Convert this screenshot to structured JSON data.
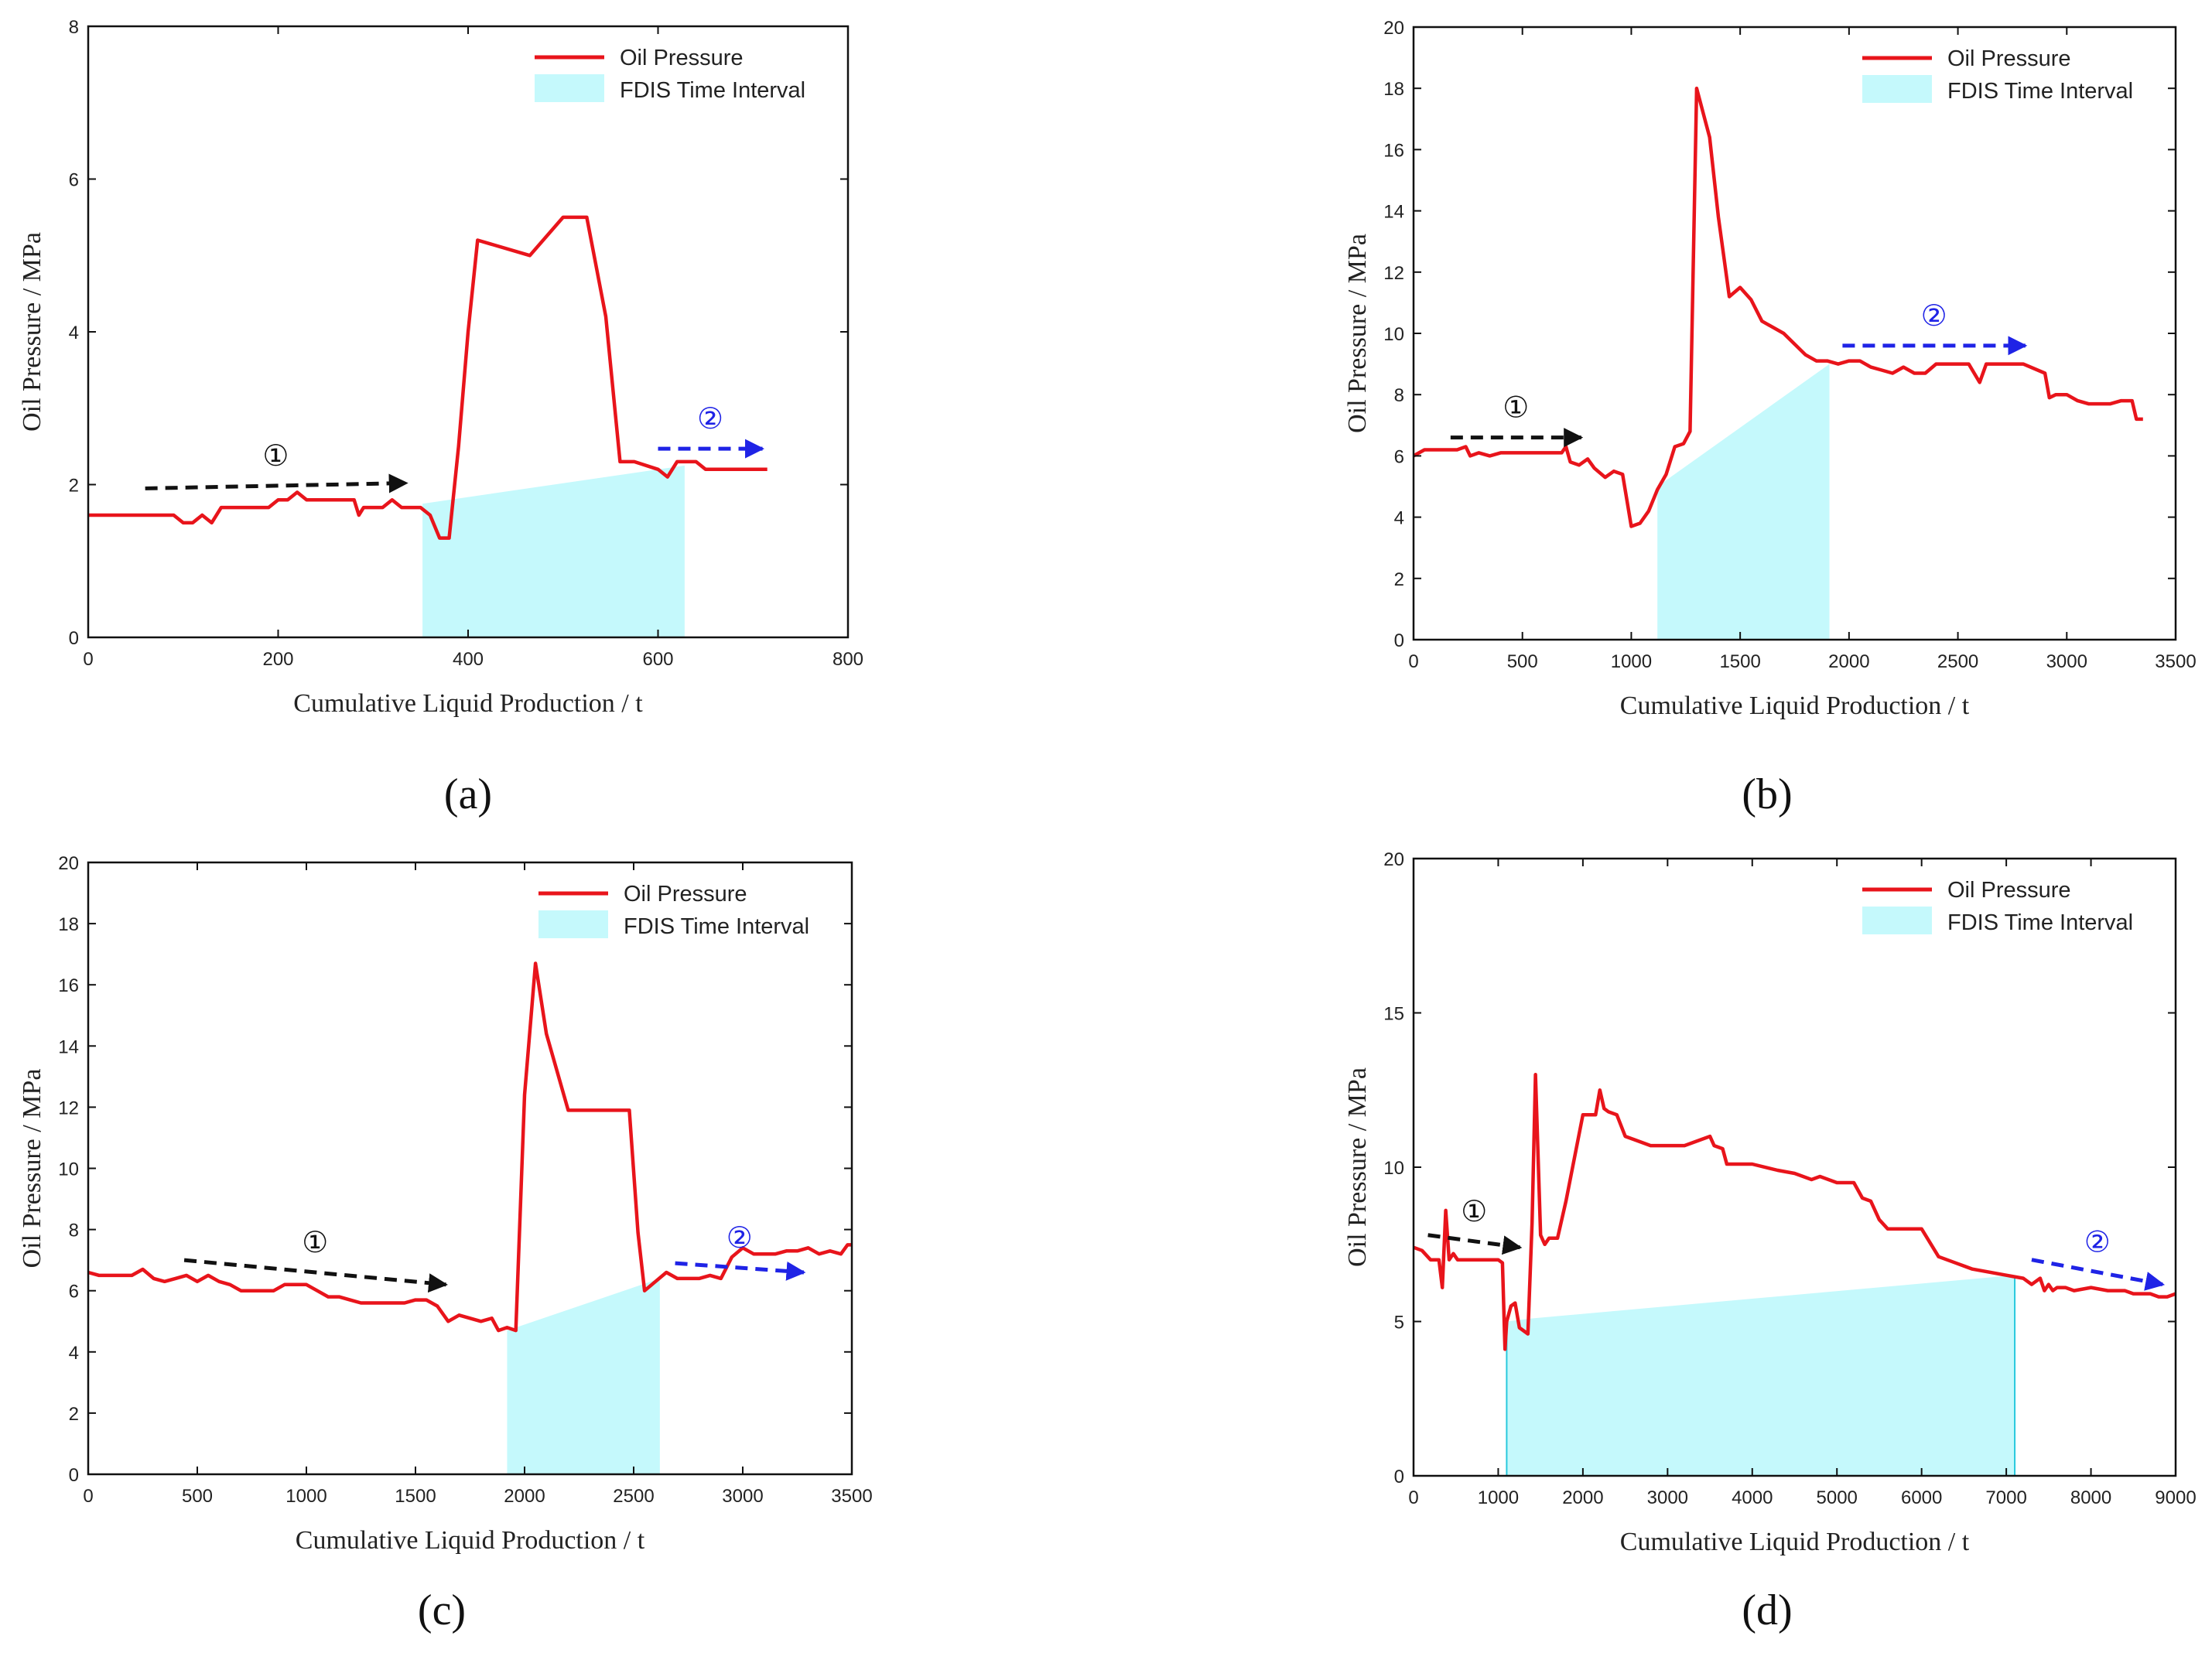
{
  "chart_data": [
    {
      "type": "line",
      "panel_label": "(a)",
      "xlabel": "Cumulative Liquid Production / t",
      "ylabel": "Oil Pressure / MPa",
      "xlim": [
        0,
        800
      ],
      "ylim": [
        0,
        8
      ],
      "xticks": [
        0,
        200,
        400,
        600,
        800
      ],
      "yticks": [
        0,
        2,
        4,
        6,
        8
      ],
      "legend": {
        "position": "top-right",
        "line_label": "Oil Pressure",
        "area_label": "FDIS Time Interval"
      },
      "series": [
        {
          "name": "Oil Pressure",
          "color": "#e8141b",
          "x": [
            0,
            90,
            100,
            110,
            120,
            130,
            140,
            150,
            190,
            200,
            210,
            220,
            230,
            280,
            285,
            290,
            300,
            310,
            320,
            330,
            340,
            350,
            360,
            370,
            380,
            390,
            400,
            410,
            465,
            500,
            525,
            545,
            560,
            575,
            600,
            610,
            620,
            630,
            640,
            650,
            660,
            680,
            700,
            715
          ],
          "y": [
            1.6,
            1.6,
            1.5,
            1.5,
            1.6,
            1.5,
            1.7,
            1.7,
            1.7,
            1.8,
            1.8,
            1.9,
            1.8,
            1.8,
            1.6,
            1.7,
            1.7,
            1.7,
            1.8,
            1.7,
            1.7,
            1.7,
            1.6,
            1.3,
            1.3,
            2.5,
            4.0,
            5.2,
            5.0,
            5.5,
            5.5,
            4.2,
            2.3,
            2.3,
            2.2,
            2.1,
            2.3,
            2.3,
            2.3,
            2.2,
            2.2,
            2.2,
            2.2,
            2.2
          ]
        }
      ],
      "interval": {
        "color": "#c5f9fc",
        "x": [
          352,
          352,
          628,
          628
        ],
        "y": [
          0,
          1.75,
          2.25,
          0
        ]
      },
      "annotations": [
        {
          "label": "①",
          "color": "#111111",
          "x1": 60,
          "y1": 1.95,
          "x2": 335,
          "y2": 2.02
        },
        {
          "label": "②",
          "color": "#1f23e6",
          "x1": 600,
          "y1": 2.47,
          "x2": 710,
          "y2": 2.47
        }
      ]
    },
    {
      "type": "line",
      "panel_label": "(b)",
      "xlabel": "Cumulative Liquid Production / t",
      "ylabel": "Oil Pressure / MPa",
      "xlim": [
        0,
        3500
      ],
      "ylim": [
        0,
        20
      ],
      "xticks": [
        0,
        500,
        1000,
        1500,
        2000,
        2500,
        3000,
        3500
      ],
      "yticks": [
        0,
        2,
        4,
        6,
        8,
        10,
        12,
        14,
        16,
        18,
        20
      ],
      "legend": {
        "position": "top-right",
        "line_label": "Oil Pressure",
        "area_label": "FDIS Time Interval"
      },
      "series": [
        {
          "name": "Oil Pressure",
          "color": "#e8141b",
          "x": [
            0,
            50,
            200,
            240,
            260,
            300,
            350,
            400,
            500,
            600,
            680,
            700,
            720,
            760,
            800,
            830,
            880,
            920,
            960,
            1000,
            1040,
            1080,
            1120,
            1160,
            1200,
            1240,
            1270,
            1300,
            1330,
            1360,
            1400,
            1450,
            1500,
            1550,
            1600,
            1700,
            1800,
            1850,
            1900,
            1950,
            2000,
            2050,
            2100,
            2150,
            2200,
            2250,
            2300,
            2350,
            2400,
            2450,
            2500,
            2550,
            2600,
            2630,
            2650,
            2700,
            2800,
            2900,
            2920,
            2950,
            3000,
            3050,
            3100,
            3200,
            3250,
            3270,
            3300,
            3320,
            3350
          ],
          "y": [
            6.0,
            6.2,
            6.2,
            6.3,
            6.0,
            6.1,
            6.0,
            6.1,
            6.1,
            6.1,
            6.1,
            6.3,
            5.8,
            5.7,
            5.9,
            5.6,
            5.3,
            5.5,
            5.4,
            3.7,
            3.8,
            4.2,
            4.9,
            5.4,
            6.3,
            6.4,
            6.8,
            18.0,
            17.2,
            16.4,
            13.8,
            11.2,
            11.5,
            11.1,
            10.4,
            10.0,
            9.3,
            9.1,
            9.1,
            9.0,
            9.1,
            9.1,
            8.9,
            8.8,
            8.7,
            8.9,
            8.7,
            8.7,
            9.0,
            9.0,
            9.0,
            9.0,
            8.4,
            9.0,
            9.0,
            9.0,
            9.0,
            8.7,
            7.9,
            8.0,
            8.0,
            7.8,
            7.7,
            7.7,
            7.8,
            7.8,
            7.8,
            7.2,
            7.2
          ]
        }
      ],
      "interval": {
        "color": "#c5f9fc",
        "x": [
          1120,
          1120,
          1910,
          1910
        ],
        "y": [
          0,
          5.0,
          9.0,
          0
        ]
      },
      "annotations": [
        {
          "label": "①",
          "color": "#111111",
          "x1": 170,
          "y1": 6.6,
          "x2": 770,
          "y2": 6.6
        },
        {
          "label": "②",
          "color": "#1f23e6",
          "x1": 1970,
          "y1": 9.6,
          "x2": 2810,
          "y2": 9.6
        }
      ]
    },
    {
      "type": "line",
      "panel_label": "(c)",
      "xlabel": "Cumulative Liquid Production / t",
      "ylabel": "Oil Pressure / MPa",
      "xlim": [
        0,
        3500
      ],
      "ylim": [
        0,
        20
      ],
      "xticks": [
        0,
        500,
        1000,
        1500,
        2000,
        2500,
        3000,
        3500
      ],
      "yticks": [
        0,
        2,
        4,
        6,
        8,
        10,
        12,
        14,
        16,
        18,
        20
      ],
      "legend": {
        "position": "top-right",
        "line_label": "Oil Pressure",
        "area_label": "FDIS Time Interval"
      },
      "series": [
        {
          "name": "Oil Pressure",
          "color": "#e8141b",
          "x": [
            0,
            50,
            100,
            200,
            250,
            300,
            350,
            400,
            450,
            500,
            550,
            600,
            650,
            700,
            750,
            800,
            850,
            900,
            950,
            1000,
            1050,
            1100,
            1150,
            1200,
            1250,
            1300,
            1350,
            1400,
            1450,
            1500,
            1550,
            1600,
            1650,
            1700,
            1750,
            1800,
            1850,
            1880,
            1920,
            1960,
            2000,
            2050,
            2100,
            2200,
            2300,
            2400,
            2480,
            2520,
            2550,
            2600,
            2650,
            2700,
            2750,
            2800,
            2850,
            2900,
            2950,
            3000,
            3050,
            3100,
            3150,
            3200,
            3250,
            3300,
            3350,
            3400,
            3450,
            3480,
            3500
          ],
          "y": [
            6.6,
            6.5,
            6.5,
            6.5,
            6.7,
            6.4,
            6.3,
            6.4,
            6.5,
            6.3,
            6.5,
            6.3,
            6.2,
            6.0,
            6.0,
            6.0,
            6.0,
            6.2,
            6.2,
            6.2,
            6.0,
            5.8,
            5.8,
            5.7,
            5.6,
            5.6,
            5.6,
            5.6,
            5.6,
            5.7,
            5.7,
            5.5,
            5.0,
            5.2,
            5.1,
            5.0,
            5.1,
            4.7,
            4.8,
            4.7,
            12.4,
            16.7,
            14.4,
            11.9,
            11.9,
            11.9,
            11.9,
            7.9,
            6.0,
            6.3,
            6.6,
            6.4,
            6.4,
            6.4,
            6.5,
            6.4,
            7.1,
            7.4,
            7.2,
            7.2,
            7.2,
            7.3,
            7.3,
            7.4,
            7.2,
            7.3,
            7.2,
            7.5,
            7.5
          ]
        }
      ],
      "interval": {
        "color": "#c5f9fc",
        "x": [
          1920,
          1920,
          2620,
          2620
        ],
        "y": [
          0,
          4.7,
          6.4,
          0
        ]
      },
      "annotations": [
        {
          "label": "①",
          "color": "#111111",
          "x1": 440,
          "y1": 7.0,
          "x2": 1640,
          "y2": 6.2
        },
        {
          "label": "②",
          "color": "#1f23e6",
          "x1": 2690,
          "y1": 6.9,
          "x2": 3280,
          "y2": 6.6
        }
      ]
    },
    {
      "type": "line",
      "panel_label": "(d)",
      "xlabel": "Cumulative Liquid Production / t",
      "ylabel": "Oil Pressure / MPa",
      "xlim": [
        0,
        9000
      ],
      "ylim": [
        0,
        20
      ],
      "xticks": [
        0,
        1000,
        2000,
        3000,
        4000,
        5000,
        6000,
        7000,
        8000,
        9000
      ],
      "yticks": [
        0,
        5,
        10,
        15,
        20
      ],
      "legend": {
        "position": "top-right",
        "line_label": "Oil Pressure",
        "area_label": "FDIS Time Interval"
      },
      "series": [
        {
          "name": "Oil Pressure",
          "color": "#e8141b",
          "x": [
            0,
            100,
            200,
            300,
            340,
            380,
            420,
            470,
            520,
            600,
            800,
            1000,
            1050,
            1080,
            1100,
            1150,
            1200,
            1250,
            1300,
            1350,
            1400,
            1440,
            1500,
            1550,
            1600,
            1700,
            1800,
            2000,
            2150,
            2200,
            2250,
            2300,
            2400,
            2500,
            2600,
            2800,
            3000,
            3200,
            3400,
            3500,
            3550,
            3650,
            3700,
            3800,
            4000,
            4300,
            4500,
            4700,
            4800,
            5000,
            5200,
            5300,
            5400,
            5500,
            5600,
            5800,
            6000,
            6200,
            6300,
            6400,
            6600,
            6800,
            7000,
            7200,
            7300,
            7400,
            7450,
            7500,
            7550,
            7600,
            7700,
            7800,
            8000,
            8200,
            8300,
            8400,
            8500,
            8600,
            8700,
            8800,
            8900,
            9000
          ],
          "y": [
            7.4,
            7.3,
            7.0,
            7.0,
            6.1,
            8.6,
            7.0,
            7.2,
            7.0,
            7.0,
            7.0,
            7.0,
            6.9,
            4.1,
            5.0,
            5.5,
            5.6,
            4.8,
            4.7,
            4.6,
            8.2,
            13.0,
            7.8,
            7.5,
            7.7,
            7.7,
            8.9,
            11.7,
            11.7,
            12.5,
            11.9,
            11.8,
            11.7,
            11.0,
            10.9,
            10.7,
            10.7,
            10.7,
            10.9,
            11.0,
            10.7,
            10.6,
            10.1,
            10.1,
            10.1,
            9.9,
            9.8,
            9.6,
            9.7,
            9.5,
            9.5,
            9.0,
            8.9,
            8.3,
            8.0,
            8.0,
            8.0,
            7.1,
            7.0,
            6.9,
            6.7,
            6.6,
            6.5,
            6.4,
            6.2,
            6.4,
            6.0,
            6.2,
            6.0,
            6.1,
            6.1,
            6.0,
            6.1,
            6.0,
            6.0,
            6.0,
            5.9,
            5.9,
            5.9,
            5.8,
            5.8,
            5.9
          ]
        }
      ],
      "interval": {
        "color": "#c5f9fc",
        "x": [
          1100,
          1100,
          1400,
          7100,
          7100
        ],
        "y": [
          0,
          5.0,
          5.1,
          6.5,
          0
        ]
      },
      "annotations": [
        {
          "label": "①",
          "color": "#111111",
          "x1": 170,
          "y1": 7.8,
          "x2": 1260,
          "y2": 7.4
        },
        {
          "label": "②",
          "color": "#1f23e6",
          "x1": 7300,
          "y1": 7.0,
          "x2": 8850,
          "y2": 6.2
        }
      ]
    }
  ]
}
